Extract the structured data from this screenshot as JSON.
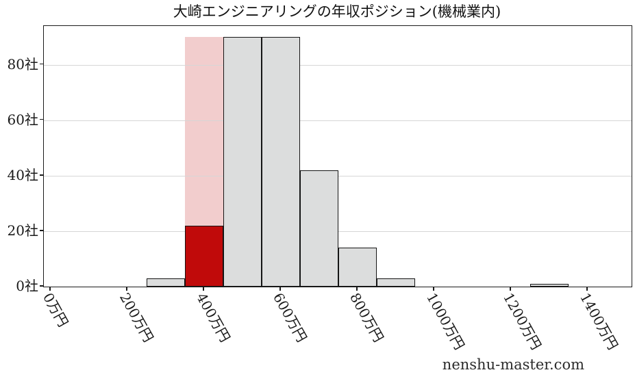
{
  "title": "大崎エンジニアリングの年収ポジション(機械業内)",
  "watermark": "nenshu-master.com",
  "chart_data": {
    "type": "bar",
    "subtype": "histogram",
    "title": "大崎エンジニアリングの年収ポジション(機械業内)",
    "xlabel": "",
    "ylabel": "",
    "x_unit": "万円",
    "y_unit": "社",
    "grid": "horizontal",
    "legend": "none",
    "xlim": [
      -18,
      1514
    ],
    "ylim": [
      0,
      94
    ],
    "bin_width": 100,
    "x_ticks": [
      {
        "value": 0,
        "label": "0万円"
      },
      {
        "value": 200,
        "label": "200万円"
      },
      {
        "value": 400,
        "label": "400万円"
      },
      {
        "value": 600,
        "label": "600万円"
      },
      {
        "value": 800,
        "label": "800万円"
      },
      {
        "value": 1000,
        "label": "1000万円"
      },
      {
        "value": 1200,
        "label": "1200万円"
      },
      {
        "value": 1400,
        "label": "1400万円"
      }
    ],
    "y_ticks": [
      {
        "value": 0,
        "label": "0社"
      },
      {
        "value": 20,
        "label": "20社"
      },
      {
        "value": 40,
        "label": "40社"
      },
      {
        "value": 60,
        "label": "60社"
      },
      {
        "value": 80,
        "label": "80社"
      }
    ],
    "bins": [
      {
        "range": [
          250,
          350
        ],
        "count": 3,
        "highlight": false
      },
      {
        "range": [
          350,
          450
        ],
        "count": 22,
        "highlight": true
      },
      {
        "range": [
          450,
          550
        ],
        "count": 90,
        "highlight": false
      },
      {
        "range": [
          550,
          650
        ],
        "count": 90,
        "highlight": false
      },
      {
        "range": [
          650,
          750
        ],
        "count": 42,
        "highlight": false
      },
      {
        "range": [
          750,
          850
        ],
        "count": 14,
        "highlight": false
      },
      {
        "range": [
          850,
          950
        ],
        "count": 3,
        "highlight": false
      },
      {
        "range": [
          1250,
          1350
        ],
        "count": 1,
        "highlight": false
      }
    ],
    "highlight_band": {
      "range": [
        350,
        450
      ],
      "top": 90
    },
    "colors": {
      "bar": "#dcdddd",
      "bar_edge": "#141414",
      "highlight_bar": "#c00a0a",
      "highlight_band": "#f2cdcd",
      "grid": "#d6d6d6",
      "axis": "#1a1a1a",
      "text": "#1a1a1a",
      "watermark": "#2b2b2b"
    }
  }
}
